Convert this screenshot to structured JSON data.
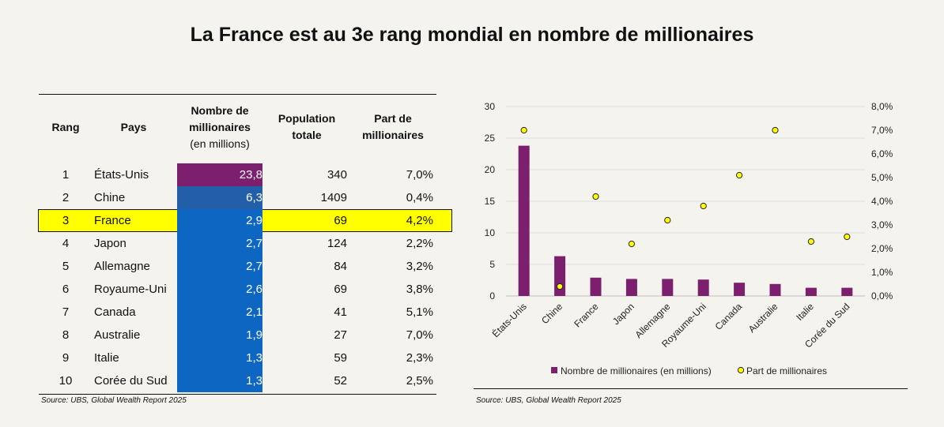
{
  "title": "La France est au 3e rang mondial en nombre de millionaires",
  "table": {
    "headers": {
      "rank": "Rang",
      "country": "Pays",
      "millionaires_l1": "Nombre de",
      "millionaires_l2": "millionaires",
      "millionaires_l3": "(en millions)",
      "population_l1": "Population",
      "population_l2": "totale",
      "share_l1": "Part de",
      "share_l2": "millionaires"
    },
    "rows": [
      {
        "rank": "1",
        "country": "États-Unis",
        "millionaires": "23,8",
        "population": "340",
        "share": "7,0%",
        "fill": "#7b1f6e"
      },
      {
        "rank": "2",
        "country": "Chine",
        "millionaires": "6,3",
        "population": "1409",
        "share": "0,4%",
        "fill": "#225fa8"
      },
      {
        "rank": "3",
        "country": "France",
        "millionaires": "2,9",
        "population": "69",
        "share": "4,2%",
        "fill": "#0d66c2",
        "highlight": true
      },
      {
        "rank": "4",
        "country": "Japon",
        "millionaires": "2,7",
        "population": "124",
        "share": "2,2%",
        "fill": "#0d66c2"
      },
      {
        "rank": "5",
        "country": "Allemagne",
        "millionaires": "2,7",
        "population": "84",
        "share": "3,2%",
        "fill": "#0d66c2"
      },
      {
        "rank": "6",
        "country": "Royaume-Uni",
        "millionaires": "2,6",
        "population": "69",
        "share": "3,8%",
        "fill": "#0d66c2"
      },
      {
        "rank": "7",
        "country": "Canada",
        "millionaires": "2,1",
        "population": "41",
        "share": "5,1%",
        "fill": "#0d66c2"
      },
      {
        "rank": "8",
        "country": "Australie",
        "millionaires": "1,9",
        "population": "27",
        "share": "7,0%",
        "fill": "#0d66c2"
      },
      {
        "rank": "9",
        "country": "Italie",
        "millionaires": "1,3",
        "population": "59",
        "share": "2,3%",
        "fill": "#0d66c2"
      },
      {
        "rank": "10",
        "country": "Corée du Sud",
        "millionaires": "1,3",
        "population": "52",
        "share": "2,5%",
        "fill": "#0d66c2"
      }
    ],
    "source": "Source: UBS, Global Wealth Report 2025"
  },
  "chart_data": {
    "type": "bar",
    "categories": [
      "États-Unis",
      "Chine",
      "France",
      "Japon",
      "Allemagne",
      "Royaume-Uni",
      "Canada",
      "Australie",
      "Italie",
      "Corée du Sud"
    ],
    "series": [
      {
        "name": "Nombre de millionaires (en millions)",
        "type": "bar",
        "axis": "left",
        "color": "#7b1f6e",
        "values": [
          23.8,
          6.3,
          2.9,
          2.7,
          2.7,
          2.6,
          2.1,
          1.9,
          1.3,
          1.3
        ]
      },
      {
        "name": "Part de millionaires",
        "type": "scatter",
        "axis": "right",
        "color": "#ffff00",
        "values": [
          7.0,
          0.4,
          4.2,
          2.2,
          3.2,
          3.8,
          5.1,
          7.0,
          2.3,
          2.5
        ]
      }
    ],
    "y_left": {
      "min": 0,
      "max": 30,
      "ticks": [
        "0",
        "5",
        "10",
        "15",
        "20",
        "25",
        "30"
      ],
      "tick_values": [
        0,
        5,
        10,
        15,
        20,
        25,
        30
      ]
    },
    "y_right": {
      "min": 0,
      "max": 8,
      "ticks": [
        "0,0%",
        "1,0%",
        "2,0%",
        "3,0%",
        "4,0%",
        "5,0%",
        "6,0%",
        "7,0%",
        "8,0%"
      ],
      "tick_values": [
        0,
        1,
        2,
        3,
        4,
        5,
        6,
        7,
        8
      ]
    },
    "gridlines": true,
    "legend_position": "bottom",
    "legend": [
      "Nombre de millionaires (en millions)",
      "Part de millionaires"
    ],
    "source": "Source: UBS, Global Wealth Report 2025"
  }
}
